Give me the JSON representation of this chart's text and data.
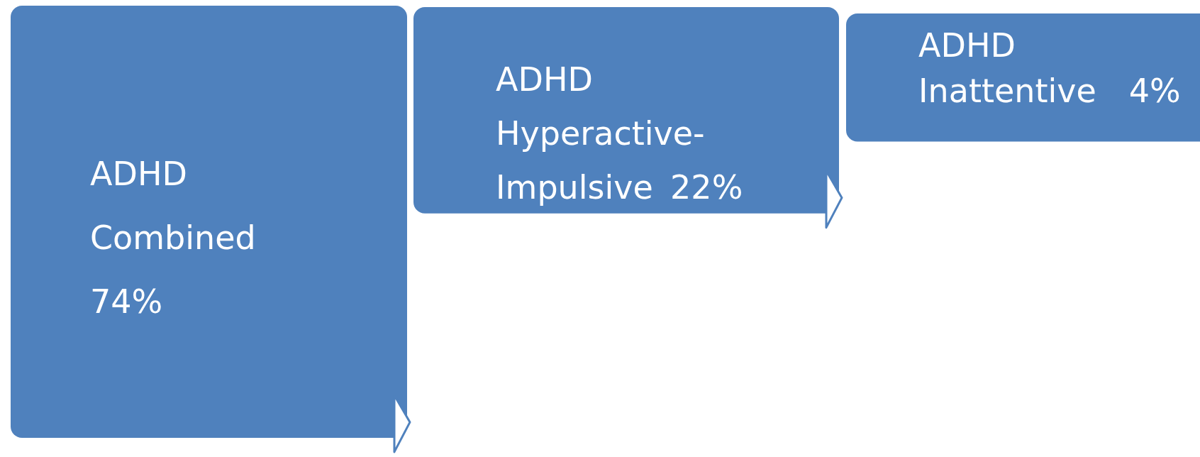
{
  "chart_data": {
    "type": "other",
    "categories": [
      "ADHD Combined",
      "ADHD Hyperactive-Impulsive",
      "ADHD Inattentive"
    ],
    "values": [
      74,
      22,
      4
    ],
    "value_labels": [
      "74%",
      "22%",
      "4%"
    ],
    "color": "#4f81bd"
  }
}
